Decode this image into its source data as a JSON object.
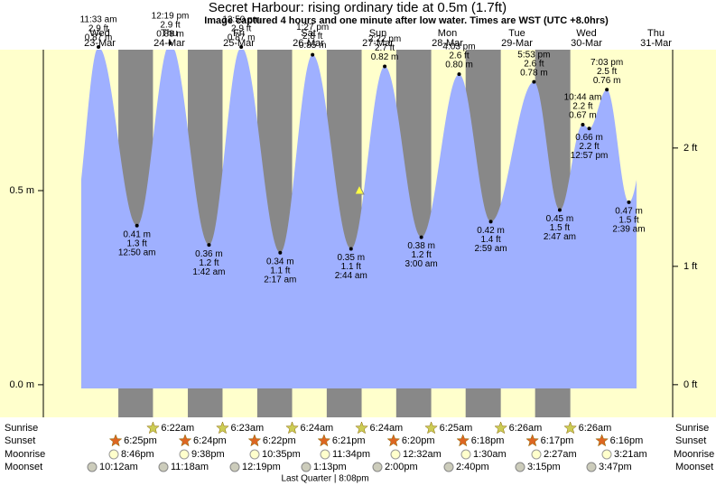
{
  "chart_data": {
    "type": "tide",
    "title": "Secret Harbour: rising  ordinary tide at 0.5m (1.7ft)",
    "subtitle": "Image captured 4 hours and one minute after low water. Times are WST (UTC +8.0hrs)",
    "days": {
      "names": [
        "Wed",
        "Thu",
        "Fri",
        "Sat",
        "Sun",
        "Mon",
        "Tue",
        "Wed",
        "Thu"
      ],
      "dates": [
        "23-Mar",
        "24-Mar",
        "25-Mar",
        "26-Mar",
        "27-Mar",
        "28-Mar",
        "29-Mar",
        "30-Mar",
        "31-Mar"
      ]
    },
    "ylim": [
      -0.084,
      0.863
    ],
    "yticks": [
      {
        "value": 0,
        "label": "0.0 m"
      },
      {
        "value": 0.5,
        "label": "0.5 m"
      }
    ],
    "y2lim": [
      -0.276,
      2.831
    ],
    "y2ticks": [
      {
        "value": 0,
        "label": "0 ft"
      },
      {
        "value": 1,
        "label": "1 ft"
      },
      {
        "value": 2,
        "label": "2 ft"
      }
    ],
    "extremes": {
      "dates": [
        "23-Mar",
        "24-Mar",
        "24-Mar",
        "25-Mar",
        "25-Mar",
        "26-Mar",
        "26-Mar",
        "27-Mar",
        "27-Mar",
        "28-Mar",
        "28-Mar",
        "29-Mar",
        "29-Mar",
        "30-Mar",
        "30-Mar",
        "30-Mar",
        "30-Mar",
        "31-Mar"
      ],
      "times": [
        "11:33 am",
        "12:50 am",
        "12:19 pm",
        "1:42 am",
        "12:50 pm",
        "2:17 am",
        "1:27 pm",
        "2:44 am",
        "2:22 pm",
        "3:00 am",
        "4:03 pm",
        "2:59 am",
        "5:53 pm",
        "2:47 am",
        "10:44 am",
        "12:57 pm",
        "7:03 pm",
        "2:39 am"
      ],
      "values": [
        0.87,
        0.41,
        0.88,
        0.36,
        0.87,
        0.34,
        0.85,
        0.35,
        0.82,
        0.38,
        0.8,
        0.42,
        0.78,
        0.45,
        0.67,
        0.66,
        0.76,
        0.47
      ],
      "value_labels": [
        "0.87 m",
        "0.41 m",
        "0.88 m",
        "0.36 m",
        "0.87 m",
        "0.34 m",
        "0.85 m",
        "0.35 m",
        "0.82 m",
        "0.38 m",
        "0.80 m",
        "0.42 m",
        "0.78 m",
        "0.45 m",
        "0.67 m",
        "0.66 m",
        "0.76 m",
        "0.47 m"
      ],
      "feet_labels": [
        "2.9 ft",
        "1.3 ft",
        "2.9 ft",
        "1.2 ft",
        "2.9 ft",
        "1.1 ft",
        "2.8 ft",
        "1.1 ft",
        "2.7 ft",
        "1.2 ft",
        "2.6 ft",
        "1.4 ft",
        "2.6 ft",
        "1.5 ft",
        "2.2 ft",
        "2.2 ft",
        "2.5 ft",
        "1.5 ft"
      ]
    },
    "current_level": 0.5,
    "colors": {
      "background": "#ffffcc",
      "night": "#888888",
      "water": "#9fb0ff",
      "days": "#dd0000",
      "marker": "#ffff44"
    },
    "sun": {
      "sunrise_label": "Sunrise",
      "sunset_label": "Sunset",
      "sunrise": [
        "6:22am",
        "6:23am",
        "6:24am",
        "6:24am",
        "6:25am",
        "6:26am",
        "6:26am"
      ],
      "sunset": [
        "6:25pm",
        "6:24pm",
        "6:22pm",
        "6:21pm",
        "6:20pm",
        "6:18pm",
        "6:17pm",
        "6:16pm"
      ]
    },
    "moon": {
      "moonrise_label": "Moonrise",
      "moonset_label": "Moonset",
      "moonrise": [
        "8:46pm",
        "9:38pm",
        "10:35pm",
        "11:34pm",
        "12:32am",
        "1:30am",
        "2:27am",
        "3:21am"
      ],
      "moonset": [
        "10:12am",
        "11:18am",
        "12:19pm",
        "1:13pm",
        "2:00pm",
        "2:40pm",
        "3:15pm",
        "3:47pm"
      ],
      "phase": "Last Quarter | 8:08pm"
    }
  }
}
